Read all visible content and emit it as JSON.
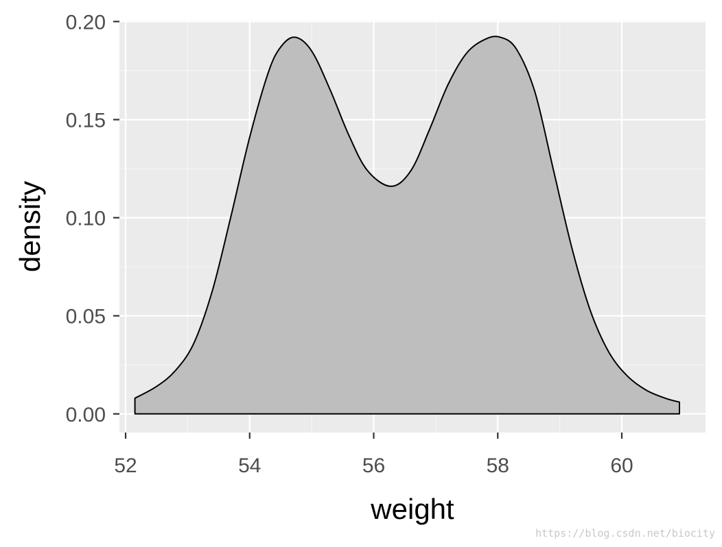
{
  "chart_data": {
    "type": "area",
    "subtype": "density",
    "title": "",
    "xlabel": "weight",
    "ylabel": "density",
    "xlim": [
      51.9,
      61.35
    ],
    "ylim": [
      -0.0095,
      0.2005
    ],
    "xticks": [
      52,
      54,
      56,
      58,
      60
    ],
    "xtick_labels": [
      "52",
      "54",
      "56",
      "58",
      "60"
    ],
    "yticks": [
      0.0,
      0.05,
      0.1,
      0.15,
      0.2
    ],
    "ytick_labels": [
      "0.00",
      "0.05",
      "0.10",
      "0.15",
      "0.20"
    ],
    "grid": true,
    "legend": "none",
    "series": [
      {
        "x": [
          52.15,
          52.5,
          52.8,
          53.1,
          53.4,
          53.7,
          54.0,
          54.3,
          54.5,
          54.73,
          55.0,
          55.3,
          55.6,
          55.9,
          56.28,
          56.6,
          56.9,
          57.2,
          57.5,
          57.8,
          58.04,
          58.3,
          58.6,
          58.9,
          59.2,
          59.5,
          59.8,
          60.1,
          60.4,
          60.7,
          60.93
        ],
        "y": [
          0.008,
          0.014,
          0.022,
          0.036,
          0.063,
          0.101,
          0.141,
          0.174,
          0.187,
          0.192,
          0.185,
          0.165,
          0.142,
          0.124,
          0.116,
          0.124,
          0.145,
          0.168,
          0.184,
          0.191,
          0.192,
          0.186,
          0.164,
          0.124,
          0.084,
          0.052,
          0.031,
          0.019,
          0.012,
          0.008,
          0.006
        ]
      }
    ],
    "colors": {
      "panel_background": "#ebebeb",
      "grid_major": "#ffffff",
      "grid_minor": "#f5f5f5",
      "fill": "#bebebe",
      "outline": "#000000",
      "tick_text": "#4d4d4d",
      "tick_mark": "#333333"
    }
  },
  "watermark": "https://blog.csdn.net/biocity"
}
